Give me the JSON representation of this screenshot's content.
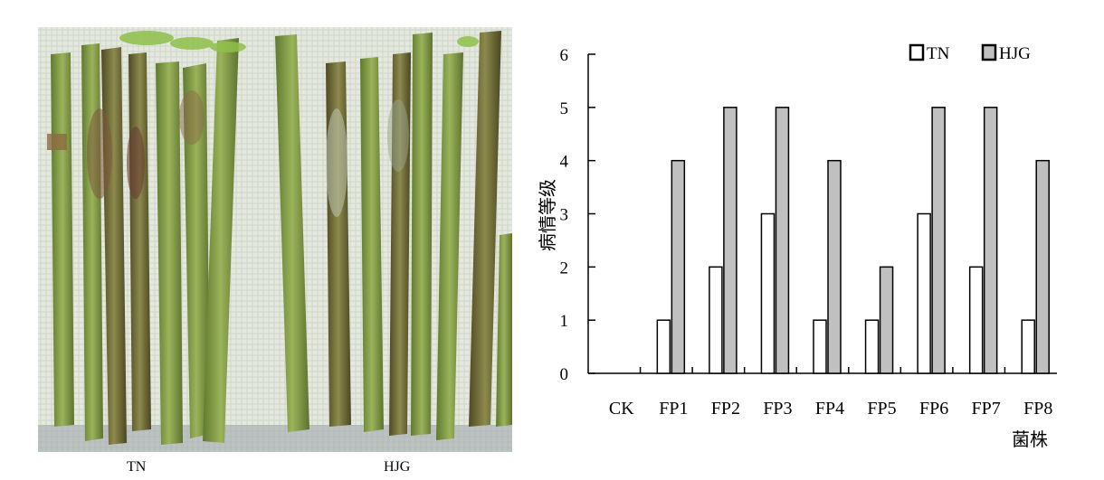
{
  "photo": {
    "caption_left": "TN",
    "caption_right": "HJG",
    "colors": {
      "background_cloth": "#e8ece4",
      "stem_green": "#7f9a46",
      "stem_dark": "#6b6230",
      "lesion_brown": "#7a5a3a"
    }
  },
  "chart_data": {
    "type": "bar",
    "categories": [
      "CK",
      "FP1",
      "FP2",
      "FP3",
      "FP4",
      "FP5",
      "FP6",
      "FP7",
      "FP8"
    ],
    "series": [
      {
        "name": "TN",
        "values": [
          0,
          1,
          2,
          3,
          1,
          1,
          3,
          2,
          1
        ],
        "color": "#ffffff"
      },
      {
        "name": "HJG",
        "values": [
          0,
          4,
          5,
          5,
          4,
          2,
          5,
          5,
          4
        ],
        "color": "#c0c0c0"
      }
    ],
    "ylabel": "病情等级",
    "xlabel": "菌株",
    "ylim": [
      0,
      6
    ],
    "yticks": [
      0,
      1,
      2,
      3,
      4,
      5,
      6
    ],
    "grid": false,
    "legend": "top-right"
  }
}
